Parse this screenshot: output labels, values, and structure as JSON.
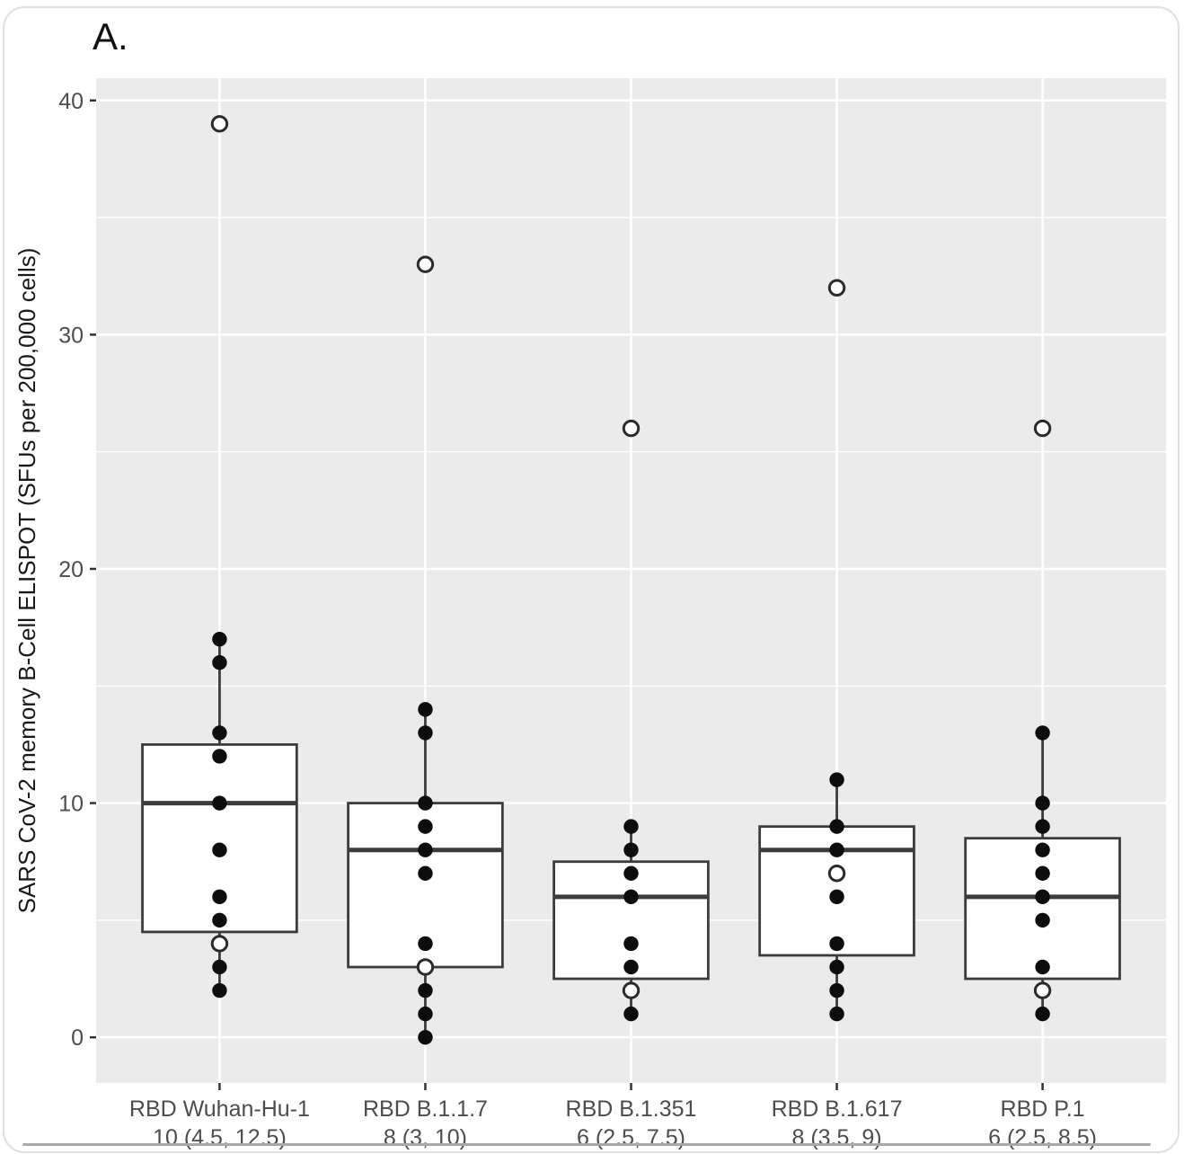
{
  "panel_label": "A.",
  "chart_data": {
    "type": "boxplot",
    "title": "",
    "xlabel": "",
    "ylabel": "SARS CoV-2 memory B-Cell ELISPOT (SFUs per 200,000 cells)",
    "y_ticks": [
      0,
      10,
      20,
      30,
      40
    ],
    "y_minor_gridlines": [
      5,
      15,
      25,
      35
    ],
    "ylim": [
      -1.95,
      40.95
    ],
    "legend_position": "none",
    "grid": "white major+minor horizontal lines, white major vertical lines on grey panel",
    "groups": [
      {
        "label": "RBD Wuhan-Hu-1",
        "stats_label": "10 (4.5, 12.5)",
        "median": 10,
        "q1": 4.5,
        "q3": 12.5,
        "whisker_low": 2,
        "whisker_high": 17,
        "points_filled": [
          17,
          16,
          13,
          12,
          10,
          8,
          6,
          5,
          3,
          2
        ],
        "points_open": [
          39,
          4
        ]
      },
      {
        "label": "RBD B.1.1.7",
        "stats_label": "8 (3, 10)",
        "median": 8,
        "q1": 3,
        "q3": 10,
        "whisker_low": 0,
        "whisker_high": 14,
        "points_filled": [
          14,
          13,
          10,
          9,
          8,
          7,
          4,
          2,
          1,
          0
        ],
        "points_open": [
          33,
          3
        ]
      },
      {
        "label": "RBD B.1.351",
        "stats_label": "6 (2.5, 7.5)",
        "median": 6,
        "q1": 2.5,
        "q3": 7.5,
        "whisker_low": 1,
        "whisker_high": 9,
        "points_filled": [
          9,
          8,
          7,
          6,
          4,
          3,
          1
        ],
        "points_open": [
          26,
          2
        ]
      },
      {
        "label": "RBD B.1.617",
        "stats_label": "8 (3.5, 9)",
        "median": 8,
        "q1": 3.5,
        "q3": 9,
        "whisker_low": 1,
        "whisker_high": 11,
        "points_filled": [
          11,
          9,
          8,
          6,
          4,
          3,
          2,
          1
        ],
        "points_open": [
          32,
          7
        ]
      },
      {
        "label": "RBD P.1",
        "stats_label": "6 (2.5, 8.5)",
        "median": 6,
        "q1": 2.5,
        "q3": 8.5,
        "whisker_low": 1,
        "whisker_high": 13,
        "points_filled": [
          13,
          10,
          9,
          8,
          7,
          6,
          5,
          3,
          1
        ],
        "points_open": [
          26,
          2
        ]
      }
    ]
  },
  "colors": {
    "panel_background": "#ebebeb",
    "gridline": "#ffffff",
    "box_fill": "#ffffff",
    "box_stroke": "#3c3c3c",
    "median_stroke": "#3c3c3c",
    "whisker_stroke": "#3c3c3c",
    "point_fill": "#0d0d0d",
    "open_point_stroke": "#2b2b2b",
    "tick_label": "#4d4d4d",
    "axis_title": "#1a1a1a",
    "panel_label": "#111111",
    "tick_mark": "#333333",
    "card_border": "#e0e0e0",
    "bottom_rule": "#a9a9a9"
  }
}
